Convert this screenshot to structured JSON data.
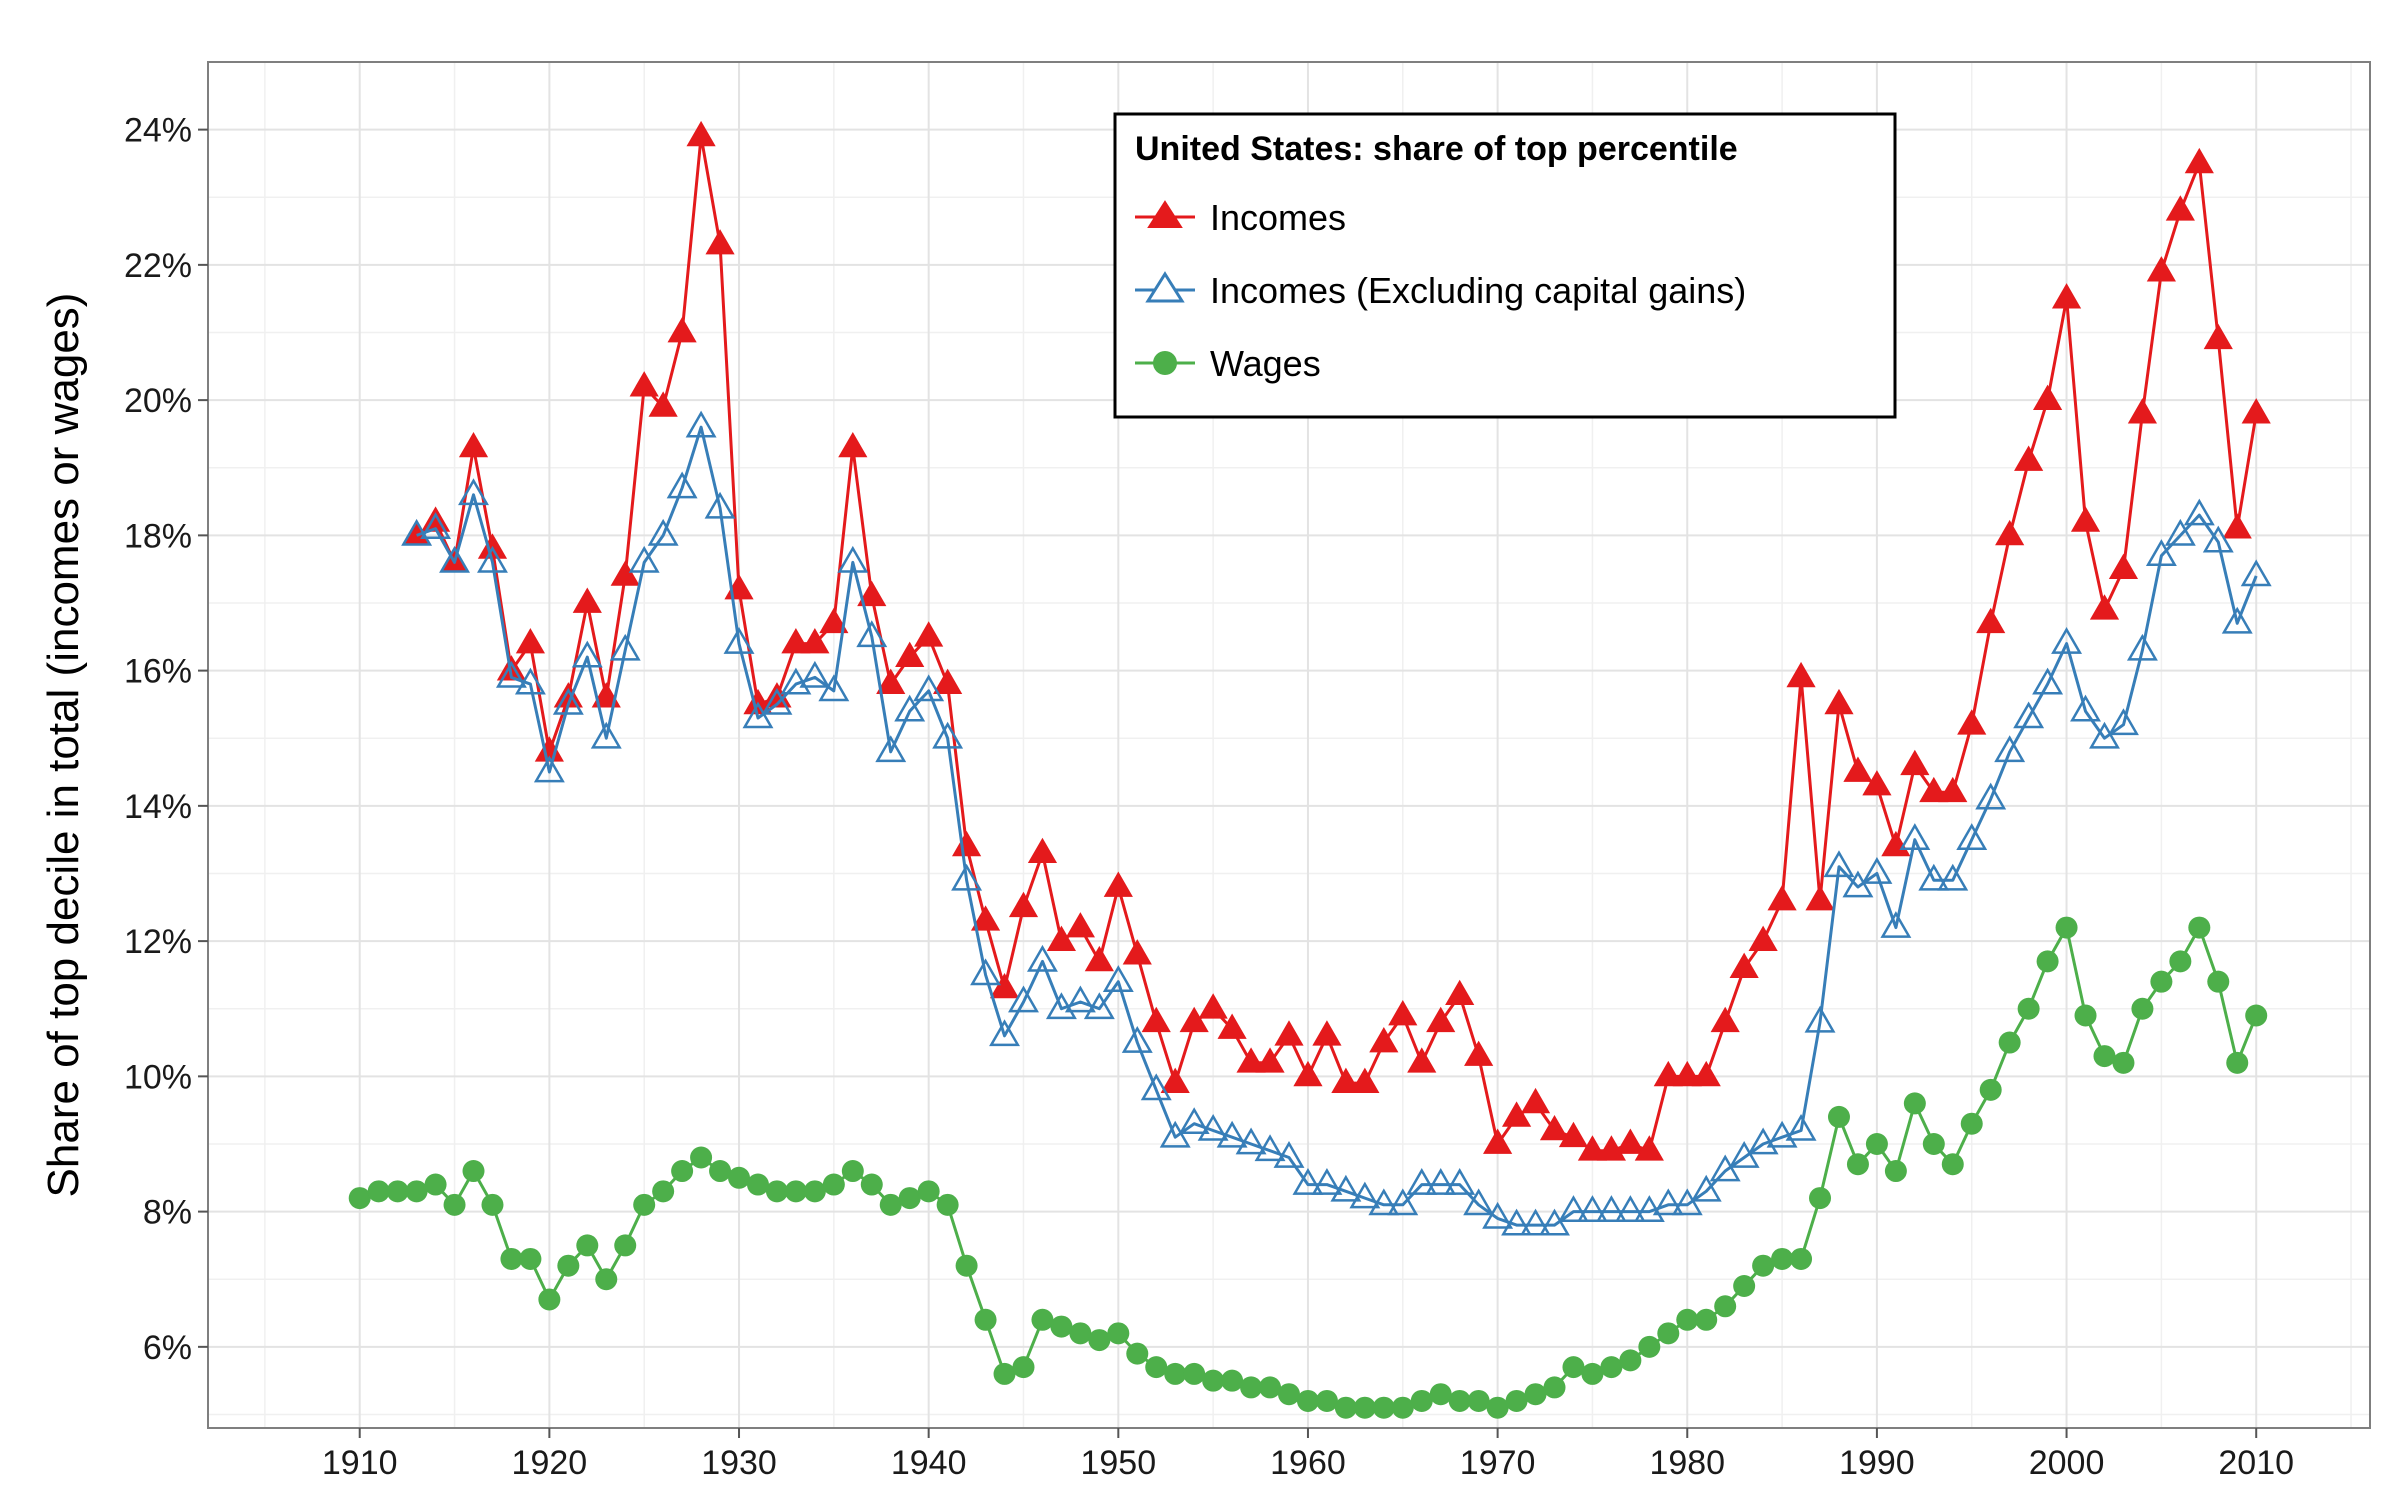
{
  "chart_data": {
    "type": "line",
    "ylabel": "Share of top decile in total (incomes or wages)",
    "xlim": [
      1902,
      2016
    ],
    "ylim": [
      4.8,
      25.0
    ],
    "x_ticks": [
      1910,
      1920,
      1930,
      1940,
      1950,
      1960,
      1970,
      1980,
      1990,
      2000,
      2010
    ],
    "y_ticks": [
      6,
      8,
      10,
      12,
      14,
      16,
      18,
      20,
      22,
      24
    ],
    "y_tick_labels": [
      "6%",
      "8%",
      "10%",
      "12%",
      "14%",
      "16%",
      "18%",
      "20%",
      "22%",
      "24%"
    ],
    "grid": true,
    "legend": {
      "title": "United States: share of top percentile",
      "position": "top-center"
    },
    "series": [
      {
        "name": "Incomes",
        "color": "#e41a1c",
        "marker": "triangle-filled",
        "x": [
          1913,
          1914,
          1915,
          1916,
          1917,
          1918,
          1919,
          1920,
          1921,
          1922,
          1923,
          1924,
          1925,
          1926,
          1927,
          1928,
          1929,
          1930,
          1931,
          1932,
          1933,
          1934,
          1935,
          1936,
          1937,
          1938,
          1939,
          1940,
          1941,
          1942,
          1943,
          1944,
          1945,
          1946,
          1947,
          1948,
          1949,
          1950,
          1951,
          1952,
          1953,
          1954,
          1955,
          1956,
          1957,
          1958,
          1959,
          1960,
          1961,
          1962,
          1963,
          1964,
          1965,
          1966,
          1967,
          1968,
          1969,
          1970,
          1971,
          1972,
          1973,
          1974,
          1975,
          1976,
          1977,
          1978,
          1979,
          1980,
          1981,
          1982,
          1983,
          1984,
          1985,
          1986,
          1987,
          1988,
          1989,
          1990,
          1991,
          1992,
          1993,
          1994,
          1995,
          1996,
          1997,
          1998,
          1999,
          2000,
          2001,
          2002,
          2003,
          2004,
          2005,
          2006,
          2007,
          2008,
          2009,
          2010
        ],
        "values": [
          18.0,
          18.2,
          17.6,
          19.3,
          17.8,
          16.0,
          16.4,
          14.8,
          15.6,
          17.0,
          15.6,
          17.4,
          20.2,
          19.9,
          21.0,
          23.9,
          22.3,
          17.2,
          15.5,
          15.6,
          16.4,
          16.4,
          16.7,
          19.3,
          17.1,
          15.8,
          16.2,
          16.5,
          15.8,
          13.4,
          12.3,
          11.3,
          12.5,
          13.3,
          12.0,
          12.2,
          11.7,
          12.8,
          11.8,
          10.8,
          9.9,
          10.8,
          11.0,
          10.7,
          10.2,
          10.2,
          10.6,
          10.0,
          10.6,
          9.9,
          9.9,
          10.5,
          10.9,
          10.2,
          10.8,
          11.2,
          10.3,
          9.0,
          9.4,
          9.6,
          9.2,
          9.1,
          8.9,
          8.9,
          9.0,
          8.9,
          10.0,
          10.0,
          10.0,
          10.8,
          11.6,
          12.0,
          12.6,
          15.9,
          12.6,
          15.5,
          14.5,
          14.3,
          13.4,
          14.6,
          14.2,
          14.2,
          15.2,
          16.7,
          18.0,
          19.1,
          20.0,
          21.5,
          18.2,
          16.9,
          17.5,
          19.8,
          21.9,
          22.8,
          23.5,
          20.9,
          18.1,
          19.8
        ]
      },
      {
        "name": "Incomes (Excluding capital gains)",
        "color": "#377eb8",
        "marker": "triangle-open",
        "x": [
          1913,
          1914,
          1915,
          1916,
          1917,
          1918,
          1919,
          1920,
          1921,
          1922,
          1923,
          1924,
          1925,
          1926,
          1927,
          1928,
          1929,
          1930,
          1931,
          1932,
          1933,
          1934,
          1935,
          1936,
          1937,
          1938,
          1939,
          1940,
          1941,
          1942,
          1943,
          1944,
          1945,
          1946,
          1947,
          1948,
          1949,
          1950,
          1951,
          1952,
          1953,
          1954,
          1955,
          1956,
          1957,
          1958,
          1959,
          1960,
          1961,
          1962,
          1963,
          1964,
          1965,
          1966,
          1967,
          1968,
          1969,
          1970,
          1971,
          1972,
          1973,
          1974,
          1975,
          1976,
          1977,
          1978,
          1979,
          1980,
          1981,
          1982,
          1983,
          1984,
          1985,
          1986,
          1987,
          1988,
          1989,
          1990,
          1991,
          1992,
          1993,
          1994,
          1995,
          1996,
          1997,
          1998,
          1999,
          2000,
          2001,
          2002,
          2003,
          2004,
          2005,
          2006,
          2007,
          2008,
          2009,
          2010
        ],
        "values": [
          18.0,
          18.1,
          17.6,
          18.6,
          17.6,
          15.9,
          15.8,
          14.5,
          15.5,
          16.2,
          15.0,
          16.3,
          17.6,
          18.0,
          18.7,
          19.6,
          18.4,
          16.4,
          15.3,
          15.5,
          15.8,
          15.9,
          15.7,
          17.6,
          16.5,
          14.8,
          15.4,
          15.7,
          15.0,
          12.9,
          11.5,
          10.6,
          11.1,
          11.7,
          11.0,
          11.1,
          11.0,
          11.4,
          10.5,
          9.8,
          9.1,
          9.3,
          9.2,
          9.1,
          9.0,
          8.9,
          8.8,
          8.4,
          8.4,
          8.3,
          8.2,
          8.1,
          8.1,
          8.4,
          8.4,
          8.4,
          8.1,
          7.9,
          7.8,
          7.8,
          7.8,
          8.0,
          8.0,
          8.0,
          8.0,
          8.0,
          8.1,
          8.1,
          8.3,
          8.6,
          8.8,
          9.0,
          9.1,
          9.2,
          10.8,
          13.1,
          12.8,
          13.0,
          12.2,
          13.5,
          12.9,
          12.9,
          13.5,
          14.1,
          14.8,
          15.3,
          15.8,
          16.4,
          15.4,
          15.0,
          15.2,
          16.3,
          17.7,
          18.0,
          18.3,
          17.9,
          16.7,
          17.4
        ]
      },
      {
        "name": "Wages",
        "color": "#4daf4a",
        "marker": "circle-filled",
        "x": [
          1910,
          1911,
          1912,
          1913,
          1914,
          1915,
          1916,
          1917,
          1918,
          1919,
          1920,
          1921,
          1922,
          1923,
          1924,
          1925,
          1926,
          1927,
          1928,
          1929,
          1930,
          1931,
          1932,
          1933,
          1934,
          1935,
          1936,
          1937,
          1938,
          1939,
          1940,
          1941,
          1942,
          1943,
          1944,
          1945,
          1946,
          1947,
          1948,
          1949,
          1950,
          1951,
          1952,
          1953,
          1954,
          1955,
          1956,
          1957,
          1958,
          1959,
          1960,
          1961,
          1962,
          1963,
          1964,
          1965,
          1966,
          1967,
          1968,
          1969,
          1970,
          1971,
          1972,
          1973,
          1974,
          1975,
          1976,
          1977,
          1978,
          1979,
          1980,
          1981,
          1982,
          1983,
          1984,
          1985,
          1986,
          1987,
          1988,
          1989,
          1990,
          1991,
          1992,
          1993,
          1994,
          1995,
          1996,
          1997,
          1998,
          1999,
          2000,
          2001,
          2002,
          2003,
          2004,
          2005,
          2006,
          2007,
          2008,
          2009,
          2010
        ],
        "values": [
          8.2,
          8.3,
          8.3,
          8.3,
          8.4,
          8.1,
          8.6,
          8.1,
          7.3,
          7.3,
          6.7,
          7.2,
          7.5,
          7.0,
          7.5,
          8.1,
          8.3,
          8.6,
          8.8,
          8.6,
          8.5,
          8.4,
          8.3,
          8.3,
          8.3,
          8.4,
          8.6,
          8.4,
          8.1,
          8.2,
          8.3,
          8.1,
          7.2,
          6.4,
          5.6,
          5.7,
          6.4,
          6.3,
          6.2,
          6.1,
          6.2,
          5.9,
          5.7,
          5.6,
          5.6,
          5.5,
          5.5,
          5.4,
          5.4,
          5.3,
          5.2,
          5.2,
          5.1,
          5.1,
          5.1,
          5.1,
          5.2,
          5.3,
          5.2,
          5.2,
          5.1,
          5.2,
          5.3,
          5.4,
          5.7,
          5.6,
          5.7,
          5.8,
          6.0,
          6.2,
          6.4,
          6.4,
          6.6,
          6.9,
          7.2,
          7.3,
          7.3,
          8.2,
          9.4,
          8.7,
          9.0,
          8.6,
          9.6,
          9.0,
          8.7,
          9.3,
          9.8,
          10.5,
          11.0,
          11.7,
          12.2,
          10.9,
          10.3,
          10.2,
          11.0,
          11.4,
          11.7,
          12.2,
          11.4,
          10.2,
          10.9
        ]
      }
    ]
  }
}
